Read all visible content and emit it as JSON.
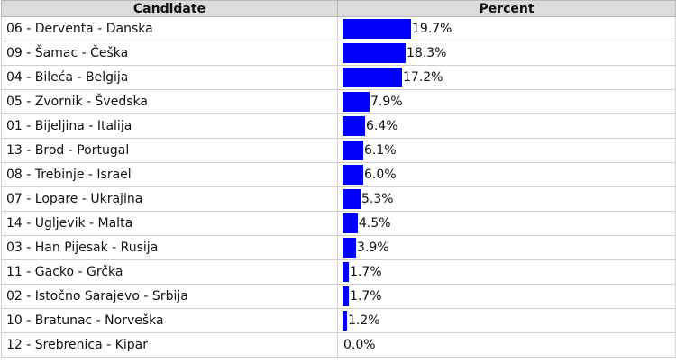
{
  "table": {
    "headers": {
      "candidate": "Candidate",
      "percent": "Percent"
    }
  },
  "chart_data": {
    "type": "bar",
    "orientation": "horizontal",
    "categories": [
      "06 - Derventa - Danska",
      "09 - Šamac - Češka",
      "04 - Bileća - Belgija",
      "05 - Zvornik - Švedska",
      "01 - Bijeljina - Italija",
      "13 - Brod - Portugal",
      "08 - Trebinje - Israel",
      "07 - Lopare - Ukrajina",
      "14 - Ugljevik - Malta",
      "03 - Han Pijesak - Rusija",
      "11 - Gacko - Grčka",
      "02 - Istočno Sarajevo - Srbija",
      "10 - Bratunac - Norveška",
      "12 - Srebrenica - Kipar"
    ],
    "values": [
      19.7,
      18.3,
      17.2,
      7.9,
      6.4,
      6.1,
      6.0,
      5.3,
      4.5,
      3.9,
      1.7,
      1.7,
      1.2,
      0.0
    ],
    "labels": [
      "19.7%",
      "18.3%",
      "17.2%",
      "7.9%",
      "6.4%",
      "6.1%",
      "6.0%",
      "5.3%",
      "4.5%",
      "3.9%",
      "1.7%",
      "1.7%",
      "1.2%",
      "0.0%"
    ],
    "bar_color": "#0000ff"
  }
}
